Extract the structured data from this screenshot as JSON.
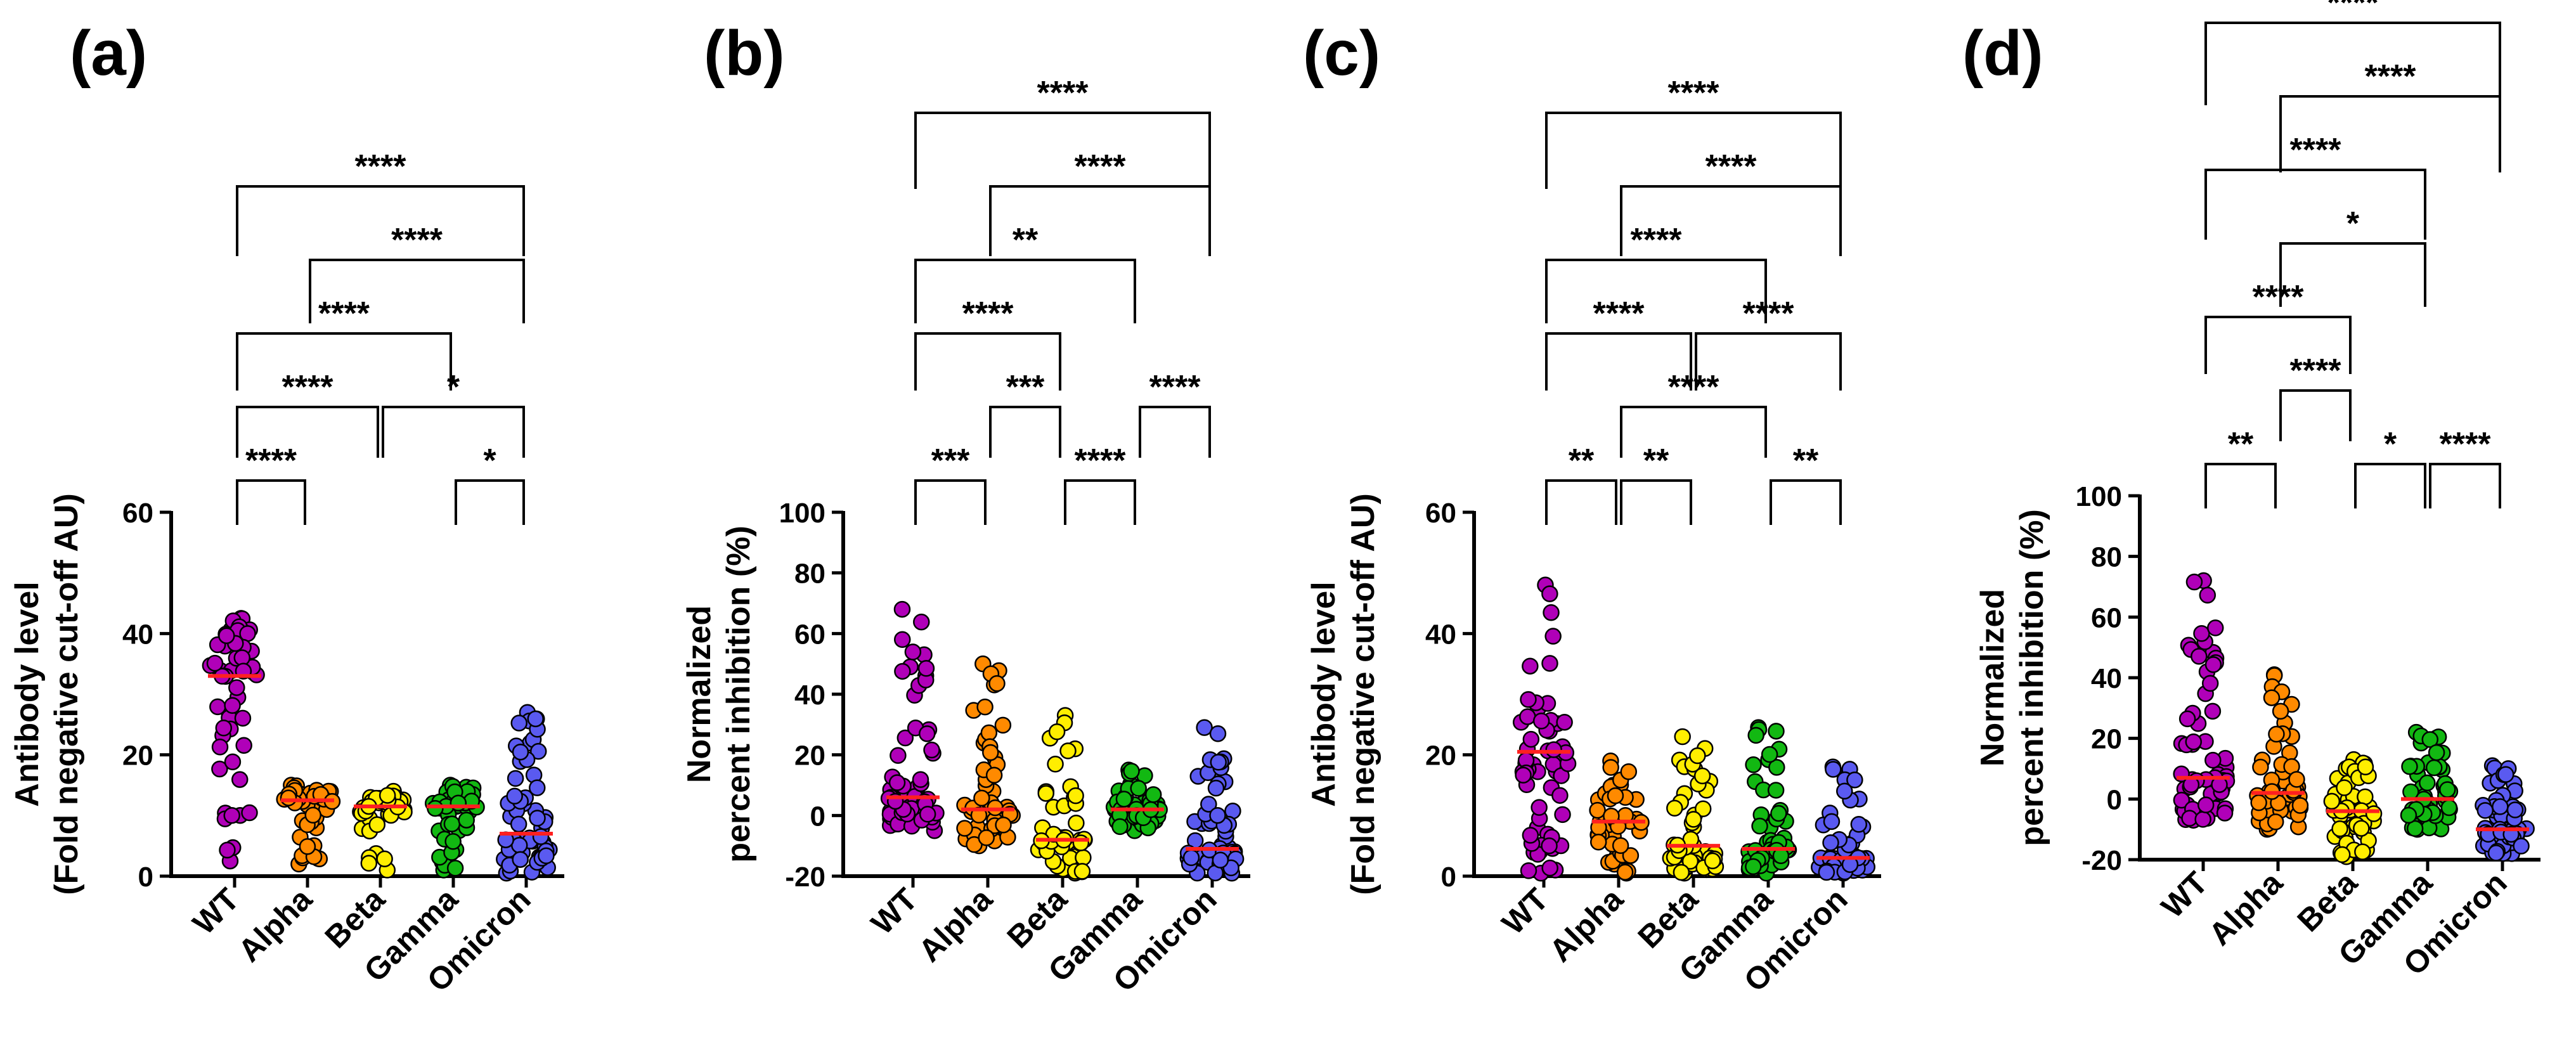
{
  "figure": {
    "colors": {
      "WT": "#b000b8",
      "Alpha": "#ff8a00",
      "Beta": "#ffee00",
      "Gamma": "#12b812",
      "Omicron": "#5a5af0",
      "median": "#ff2020"
    }
  },
  "chart_data": [
    {
      "panel": "(a)",
      "type": "scatter",
      "categories": [
        "WT",
        "Alpha",
        "Beta",
        "Gamma",
        "Omicron"
      ],
      "ylabel": [
        "Antibody level",
        "(Fold negative cut-off AU)"
      ],
      "ylim": [
        0,
        60
      ],
      "yticks": [
        0,
        20,
        40,
        60
      ],
      "medians": [
        33,
        12.5,
        11.5,
        11.5,
        7
      ],
      "ranges": [
        [
          2.5,
          42.5
        ],
        [
          2,
          15
        ],
        [
          1,
          14
        ],
        [
          1,
          15
        ],
        [
          0.5,
          27
        ]
      ],
      "n": [
        55,
        45,
        35,
        45,
        55
      ],
      "brackets": [
        {
          "from": 0,
          "to": 1,
          "level": 0,
          "label": "****"
        },
        {
          "from": 3,
          "to": 4,
          "level": 0,
          "label": "*"
        },
        {
          "from": 0,
          "to": 2,
          "level": 1,
          "label": "****"
        },
        {
          "from": 2,
          "to": 4,
          "level": 1,
          "label": "*"
        },
        {
          "from": 0,
          "to": 3,
          "level": 2,
          "label": "****"
        },
        {
          "from": 1,
          "to": 4,
          "level": 3,
          "label": "****"
        },
        {
          "from": 0,
          "to": 4,
          "level": 4,
          "label": "****"
        }
      ]
    },
    {
      "panel": "(b)",
      "type": "scatter",
      "categories": [
        "WT",
        "Alpha",
        "Beta",
        "Gamma",
        "Omicron"
      ],
      "ylabel": [
        "Normalized",
        "percent inhibition (%)"
      ],
      "ylim": [
        -20,
        100
      ],
      "yticks": [
        -20,
        0,
        20,
        40,
        60,
        80,
        100
      ],
      "medians": [
        6,
        2,
        -8,
        2,
        -11
      ],
      "ranges": [
        [
          -5,
          68
        ],
        [
          -10,
          50
        ],
        [
          -19,
          33
        ],
        [
          -5,
          15
        ],
        [
          -19,
          29
        ]
      ],
      "n": [
        60,
        50,
        50,
        50,
        55
      ],
      "brackets": [
        {
          "from": 0,
          "to": 1,
          "level": 0,
          "label": "***"
        },
        {
          "from": 2,
          "to": 3,
          "level": 0,
          "label": "****"
        },
        {
          "from": 1,
          "to": 2,
          "level": 1,
          "label": "***"
        },
        {
          "from": 3,
          "to": 4,
          "level": 1,
          "label": "****"
        },
        {
          "from": 0,
          "to": 2,
          "level": 2,
          "label": "****"
        },
        {
          "from": 0,
          "to": 3,
          "level": 3,
          "label": "**"
        },
        {
          "from": 1,
          "to": 4,
          "level": 4,
          "label": "****"
        },
        {
          "from": 0,
          "to": 4,
          "level": 5,
          "label": "****"
        }
      ]
    },
    {
      "panel": "(c)",
      "type": "scatter",
      "categories": [
        "WT",
        "Alpha",
        "Beta",
        "Gamma",
        "Omicron"
      ],
      "ylabel": [
        "Antibody level",
        "(Fold negative cut-off AU)"
      ],
      "ylim": [
        0,
        60
      ],
      "yticks": [
        0,
        20,
        40,
        60
      ],
      "medians": [
        20.5,
        9,
        5,
        4.5,
        3
      ],
      "ranges": [
        [
          0.5,
          48
        ],
        [
          0.5,
          19
        ],
        [
          0.5,
          23
        ],
        [
          0.5,
          24.5
        ],
        [
          0.5,
          18
        ]
      ],
      "n": [
        60,
        50,
        50,
        50,
        55
      ],
      "brackets": [
        {
          "from": 0,
          "to": 1,
          "level": 0,
          "label": "**"
        },
        {
          "from": 1,
          "to": 2,
          "level": 0,
          "label": "**"
        },
        {
          "from": 3,
          "to": 4,
          "level": 0,
          "label": "**"
        },
        {
          "from": 1,
          "to": 3,
          "level": 1,
          "label": "****"
        },
        {
          "from": 0,
          "to": 2,
          "level": 2,
          "label": "****"
        },
        {
          "from": 2,
          "to": 4,
          "level": 2,
          "label": "****"
        },
        {
          "from": 0,
          "to": 3,
          "level": 3,
          "label": "****"
        },
        {
          "from": 1,
          "to": 4,
          "level": 4,
          "label": "****"
        },
        {
          "from": 0,
          "to": 4,
          "level": 5,
          "label": "****"
        }
      ]
    },
    {
      "panel": "(d)",
      "type": "scatter",
      "categories": [
        "WT",
        "Alpha",
        "Beta",
        "Gamma",
        "Omicron"
      ],
      "ylabel": [
        "Normalized",
        "percent inhibition (%)"
      ],
      "ylim": [
        -20,
        100
      ],
      "yticks": [
        -20,
        0,
        20,
        40,
        60,
        80,
        100
      ],
      "medians": [
        7,
        2,
        -4,
        0,
        -10
      ],
      "ranges": [
        [
          -7,
          72
        ],
        [
          -10,
          41
        ],
        [
          -19,
          13
        ],
        [
          -10,
          22
        ],
        [
          -18,
          11
        ]
      ],
      "n": [
        60,
        50,
        50,
        50,
        55
      ],
      "brackets": [
        {
          "from": 0,
          "to": 1,
          "level": 0,
          "label": "**"
        },
        {
          "from": 2,
          "to": 3,
          "level": 0,
          "label": "*"
        },
        {
          "from": 3,
          "to": 4,
          "level": 0,
          "label": "****"
        },
        {
          "from": 1,
          "to": 2,
          "level": 1,
          "label": "****"
        },
        {
          "from": 0,
          "to": 2,
          "level": 2,
          "label": "****"
        },
        {
          "from": 1,
          "to": 3,
          "level": 3,
          "label": "*"
        },
        {
          "from": 0,
          "to": 3,
          "level": 4,
          "label": "****"
        },
        {
          "from": 1,
          "to": 4,
          "level": 5,
          "label": "****"
        },
        {
          "from": 0,
          "to": 4,
          "level": 6,
          "label": "****"
        }
      ]
    }
  ]
}
